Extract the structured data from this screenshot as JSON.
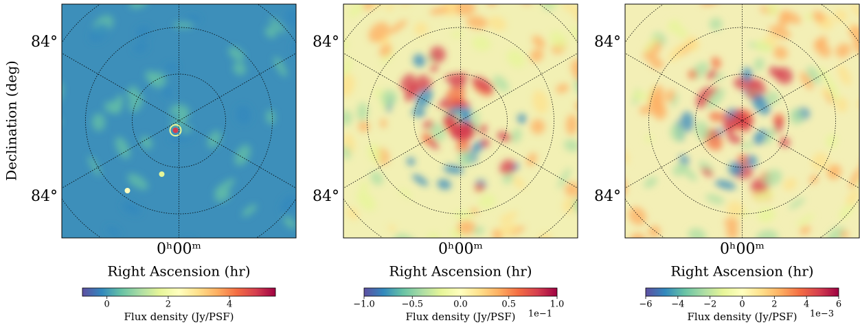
{
  "chart_data": [
    {
      "type": "image",
      "y_label": "Declination (deg)",
      "x_label": "Right Ascension (hr)",
      "xtick_labels": [
        "0ʰ00ᵐ"
      ],
      "ytick_labels": [
        "84°",
        "84°"
      ],
      "colormap": [
        "#5e4fa2",
        "#3288bd",
        "#66c2a5",
        "#abdda4",
        "#e6f598",
        "#ffffbf",
        "#fee08b",
        "#fdae61",
        "#f46d43",
        "#d53e4f",
        "#9e0142"
      ],
      "colorbar": {
        "label": "Flux density (Jy/PSF)",
        "lim": [
          -0.8,
          5.5
        ],
        "ticks": [
          0,
          2,
          4
        ]
      }
    },
    {
      "type": "image",
      "x_label": "Right Ascension (hr)",
      "xtick_labels": [
        "0ʰ00ᵐ"
      ],
      "ytick_labels": [
        "84°",
        "84°"
      ],
      "colormap": [
        "#5e4fa2",
        "#3288bd",
        "#66c2a5",
        "#abdda4",
        "#e6f598",
        "#ffffbf",
        "#fee08b",
        "#fdae61",
        "#f46d43",
        "#d53e4f",
        "#9e0142"
      ],
      "colorbar": {
        "label": "Flux density (Jy/PSF)",
        "lim": [
          -1.0,
          1.0
        ],
        "offset_label": "1e−1",
        "ticks": [
          {
            "value": -1.0,
            "label": "−1.0"
          },
          {
            "value": -0.5,
            "label": "−0.5"
          },
          {
            "value": 0.0,
            "label": "0.0"
          },
          {
            "value": 0.5,
            "label": "0.5"
          },
          {
            "value": 1.0,
            "label": "1.0"
          }
        ]
      }
    },
    {
      "type": "image",
      "x_label": "Right Ascension (hr)",
      "xtick_labels": [
        "0ʰ00ᵐ"
      ],
      "ytick_labels": [
        "84°",
        "84°"
      ],
      "colormap": [
        "#5e4fa2",
        "#3288bd",
        "#66c2a5",
        "#abdda4",
        "#e6f598",
        "#ffffbf",
        "#fee08b",
        "#fdae61",
        "#f46d43",
        "#d53e4f",
        "#9e0142"
      ],
      "colorbar": {
        "label": "Flux density (Jy/PSF)",
        "lim": [
          -6,
          6
        ],
        "offset_label": "1e−3",
        "ticks": [
          {
            "value": -6,
            "label": "−6"
          },
          {
            "value": -4,
            "label": "−4"
          },
          {
            "value": -2,
            "label": "−2"
          },
          0,
          2,
          4,
          6
        ]
      }
    }
  ]
}
